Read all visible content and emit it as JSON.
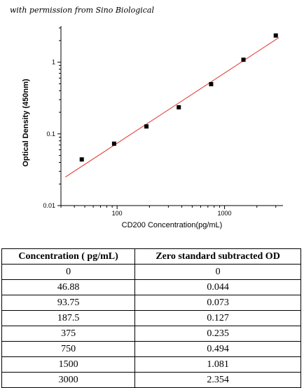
{
  "credit": "with permission from Sino Biological",
  "chart_data": {
    "type": "scatter",
    "xscale": "log",
    "yscale": "log",
    "xlabel": "CD200  Concentration(pg/mL)",
    "ylabel": "Optical Density (450nm)",
    "xlim": [
      30,
      3500
    ],
    "ylim": [
      0.01,
      3.2
    ],
    "xticks": [
      100,
      1000
    ],
    "xtick_labels": [
      "100",
      "1000"
    ],
    "yticks": [
      0.01,
      0.1,
      1
    ],
    "ytick_labels": [
      "0.01",
      "0.1",
      "1"
    ],
    "series": [
      {
        "x": [
          46.88,
          93.75,
          187.5,
          375,
          750,
          1500,
          3000
        ],
        "y": [
          0.044,
          0.073,
          0.127,
          0.235,
          0.494,
          1.081,
          2.354
        ]
      }
    ],
    "fit_line": {
      "x": [
        33,
        3200
      ],
      "y": [
        0.025,
        2.2
      ],
      "color": "#e0302a"
    },
    "marker_color": "#000000",
    "grid": false
  },
  "table": {
    "headers": [
      "Concentration ( pg/mL)",
      "Zero standard subtracted OD"
    ],
    "rows": [
      [
        "0",
        "0"
      ],
      [
        "46.88",
        "0.044"
      ],
      [
        "93.75",
        "0.073"
      ],
      [
        "187.5",
        "0.127"
      ],
      [
        "375",
        "0.235"
      ],
      [
        "750",
        "0.494"
      ],
      [
        "1500",
        "1.081"
      ],
      [
        "3000",
        "2.354"
      ]
    ]
  }
}
